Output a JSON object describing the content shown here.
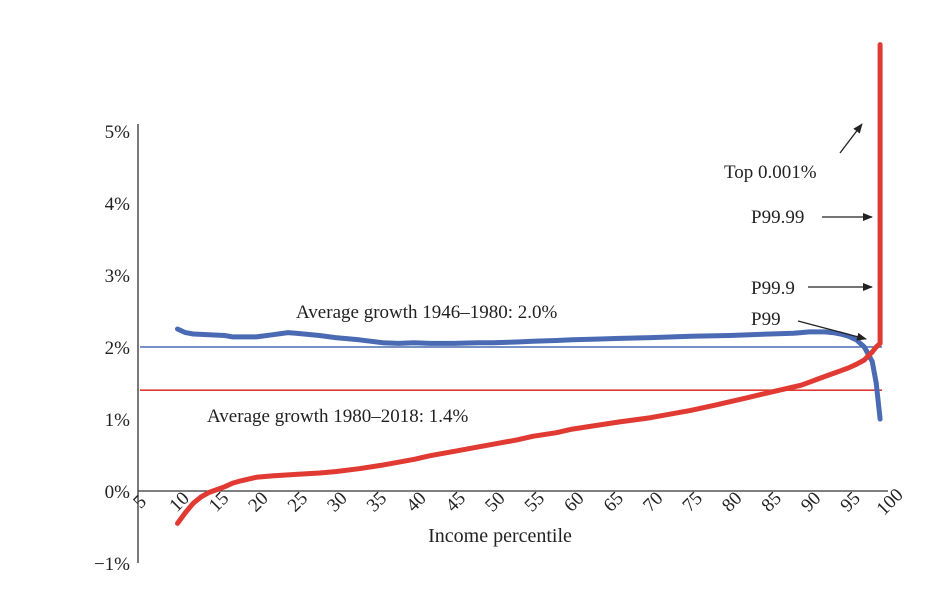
{
  "chart_data": {
    "type": "line",
    "title": "",
    "xlabel": "Income percentile",
    "ylabel": "",
    "xlim": [
      5,
      100
    ],
    "ylim": [
      -1,
      5
    ],
    "x_ticks": [
      "5",
      "10",
      "15",
      "20",
      "25",
      "30",
      "35",
      "40",
      "45",
      "50",
      "55",
      "60",
      "65",
      "70",
      "75",
      "80",
      "85",
      "90",
      "95",
      "100"
    ],
    "y_ticks": [
      "5%",
      "4%",
      "3%",
      "2%",
      "1%",
      "0%",
      "−1%"
    ],
    "grid": false,
    "colors": {
      "blue": "#4a6bb3",
      "red": "#e03a33",
      "axis": "#333333"
    },
    "series": [
      {
        "color": "#4a6bb3",
        "x": [
          10,
          11,
          12,
          14,
          16,
          17,
          20,
          22,
          24,
          25,
          28,
          30,
          33,
          36,
          38,
          40,
          42,
          45,
          48,
          50,
          53,
          55,
          58,
          60,
          63,
          66,
          70,
          75,
          80,
          85,
          88,
          89,
          90,
          91,
          92,
          93,
          94,
          95,
          96,
          97,
          98,
          98.5,
          99
        ],
        "values": [
          2.25,
          2.2,
          2.18,
          2.17,
          2.16,
          2.14,
          2.14,
          2.17,
          2.2,
          2.19,
          2.16,
          2.13,
          2.1,
          2.06,
          2.05,
          2.06,
          2.05,
          2.05,
          2.06,
          2.06,
          2.07,
          2.08,
          2.09,
          2.1,
          2.11,
          2.12,
          2.13,
          2.15,
          2.16,
          2.18,
          2.19,
          2.2,
          2.21,
          2.21,
          2.21,
          2.2,
          2.18,
          2.15,
          2.1,
          2.0,
          1.8,
          1.5,
          1.0
        ]
      },
      {
        "color": "#e03a33",
        "x": [
          10,
          11,
          12,
          13,
          14,
          15,
          16,
          17,
          18,
          20,
          22,
          25,
          28,
          30,
          33,
          36,
          38,
          40,
          42,
          45,
          48,
          50,
          53,
          55,
          58,
          60,
          63,
          66,
          70,
          72,
          75,
          78,
          80,
          82,
          85,
          87,
          89,
          90,
          91,
          92,
          93,
          94,
          95,
          96,
          97,
          98,
          98.5,
          99,
          99,
          99,
          99
        ],
        "values": [
          -0.45,
          -0.3,
          -0.17,
          -0.08,
          -0.02,
          0.02,
          0.06,
          0.11,
          0.14,
          0.19,
          0.21,
          0.23,
          0.25,
          0.27,
          0.31,
          0.36,
          0.4,
          0.44,
          0.49,
          0.55,
          0.61,
          0.65,
          0.71,
          0.76,
          0.81,
          0.86,
          0.91,
          0.96,
          1.02,
          1.06,
          1.12,
          1.19,
          1.24,
          1.29,
          1.37,
          1.42,
          1.47,
          1.51,
          1.55,
          1.59,
          1.63,
          1.67,
          1.71,
          1.76,
          1.82,
          1.93,
          2.0,
          2.05,
          2.9,
          3.8,
          6.2
        ]
      }
    ],
    "reference_lines": [
      {
        "y": 2.0,
        "color": "#4a6bb3",
        "label": "Average growth 1946–1980: 2.0%"
      },
      {
        "y": 1.4,
        "color": "#e03a33",
        "label": "Average growth 1980–2018: 1.4%"
      }
    ],
    "annotations": [
      {
        "text": "Top 0.001%",
        "arrow_to": [
          99,
          5.4
        ]
      },
      {
        "text": "P99.99",
        "arrow_to": [
          99,
          3.8
        ]
      },
      {
        "text": "P99.9",
        "arrow_to": [
          99,
          2.9
        ]
      },
      {
        "text": "P99",
        "arrow_to": [
          99,
          2.05
        ]
      }
    ]
  }
}
